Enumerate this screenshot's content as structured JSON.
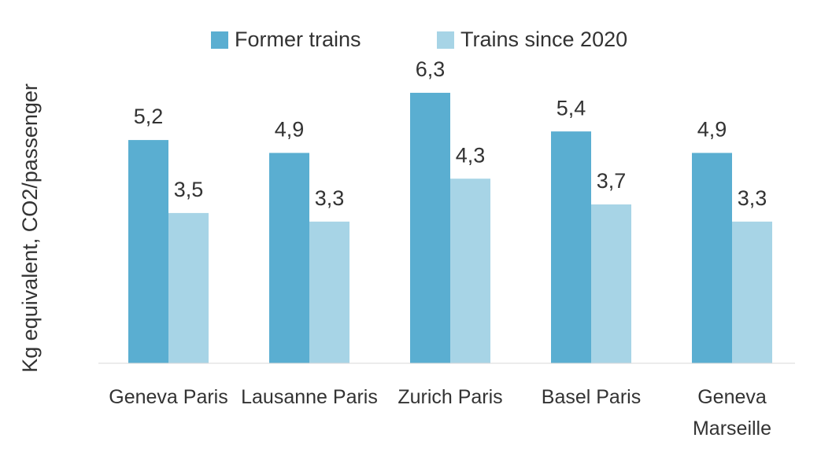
{
  "chart_data": {
    "type": "bar",
    "y_label": "Kg equivalent, CO2/passenger",
    "categories": [
      "Geneva Paris",
      "Lausanne Paris",
      "Zurich Paris",
      "Basel Paris",
      "Geneva Marseille"
    ],
    "series": [
      {
        "name": "Former trains",
        "color": "#5aaed1",
        "values": [
          5.2,
          4.9,
          6.3,
          5.4,
          4.9
        ],
        "value_labels": [
          "5,2",
          "4,9",
          "6,3",
          "5,4",
          "4,9"
        ]
      },
      {
        "name": "Trains since 2020",
        "color": "#a7d4e6",
        "values": [
          3.5,
          3.3,
          4.3,
          3.7,
          3.3
        ],
        "value_labels": [
          "3,5",
          "3,3",
          "4,3",
          "3,7",
          "3,3"
        ]
      }
    ],
    "legend": "top"
  }
}
